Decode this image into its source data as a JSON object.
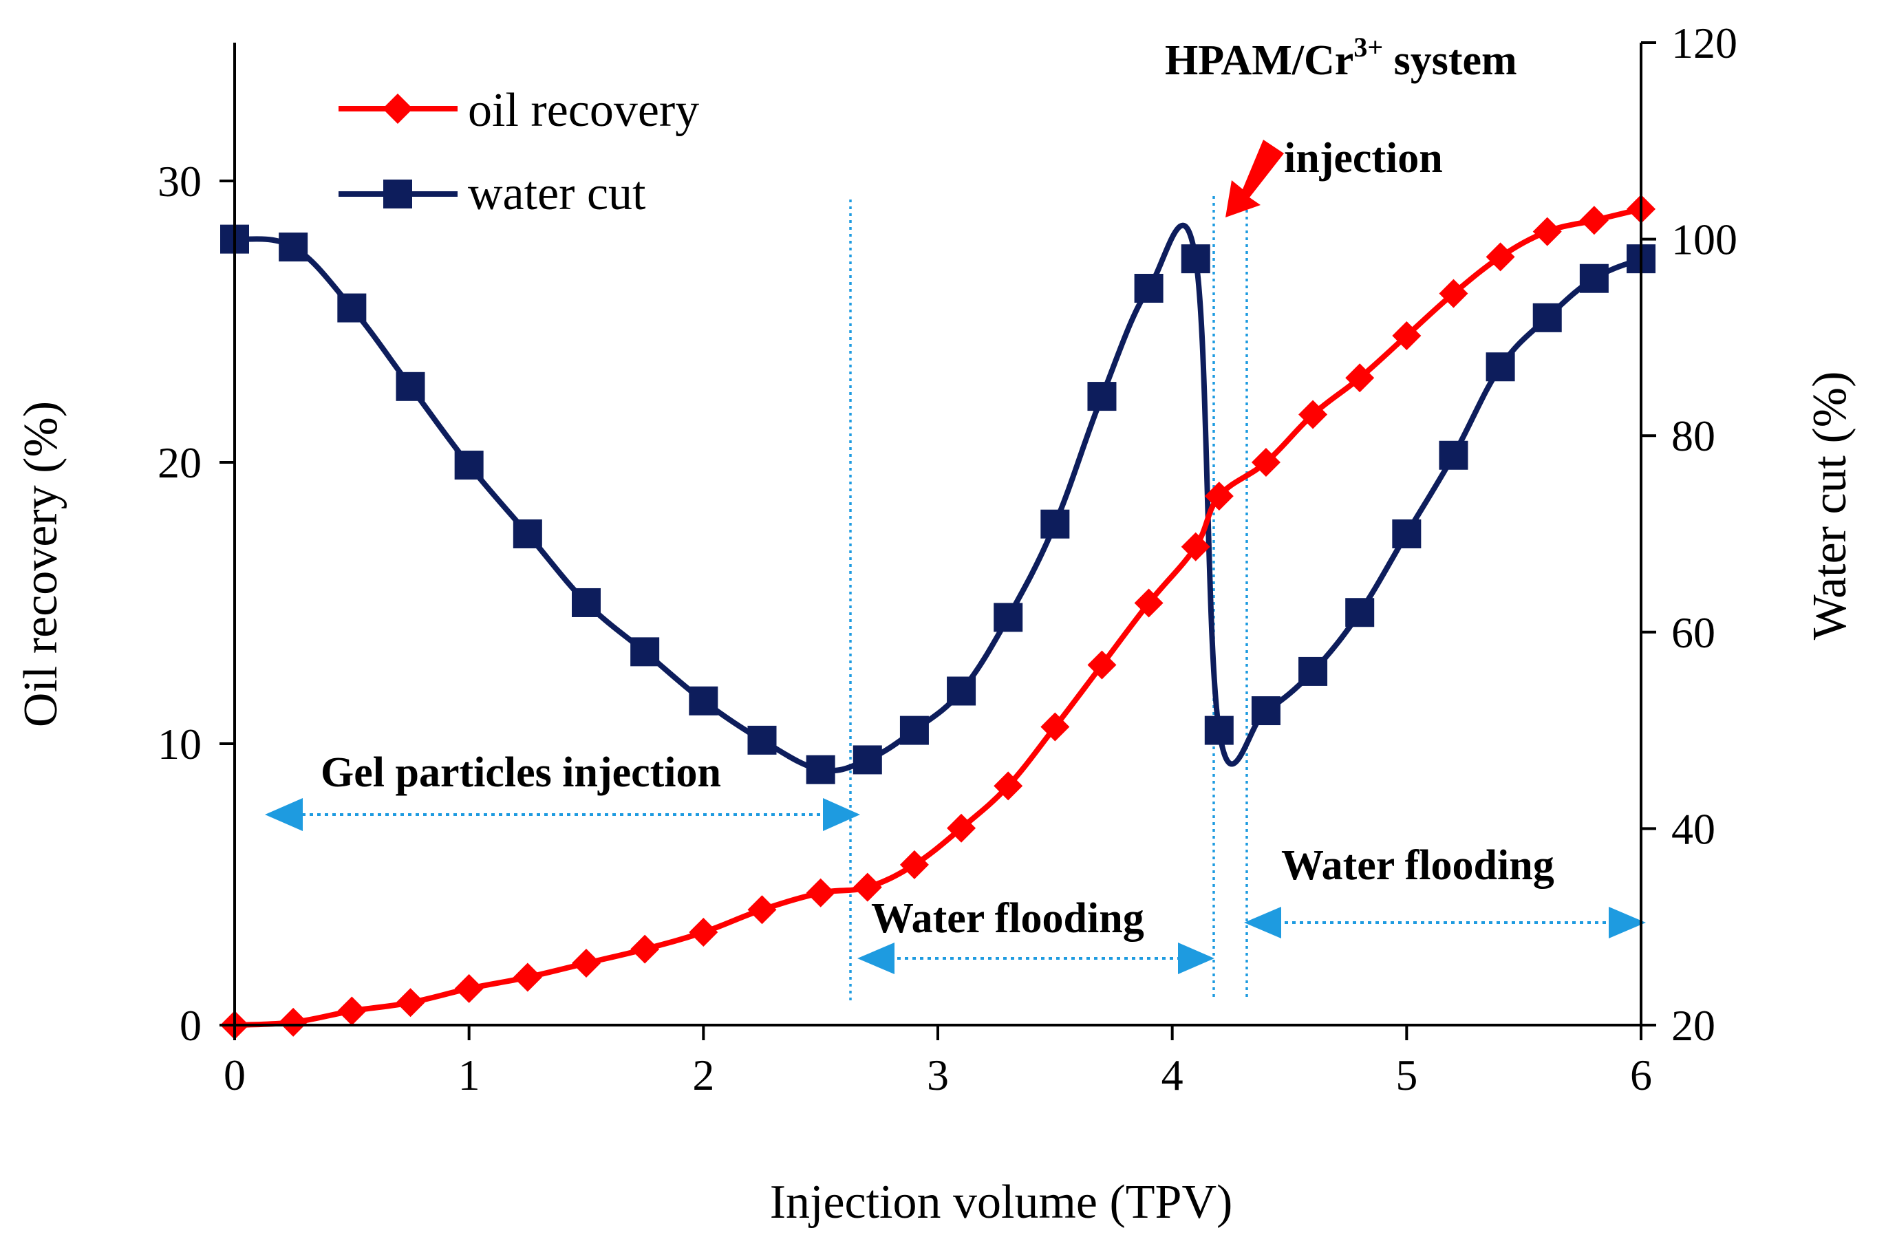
{
  "chart_data": {
    "type": "line",
    "title": "",
    "xlabel": "Injection volume (TPV)",
    "ylabel": "Oil recovery (%)",
    "y2label": "Water cut (%)",
    "xlim": [
      0,
      6
    ],
    "ylim": [
      0,
      35
    ],
    "y2lim": [
      20,
      120
    ],
    "x_ticks": [
      "0",
      "1",
      "2",
      "3",
      "4",
      "5",
      "6"
    ],
    "y_ticks": [
      "0",
      "10",
      "20",
      "30"
    ],
    "y2_ticks": [
      "20",
      "40",
      "60",
      "80",
      "100",
      "120"
    ],
    "grid": false,
    "legend_position": "top-left",
    "series": [
      {
        "name": "oil recovery",
        "axis": "left",
        "color": "#ff0000",
        "marker": "diamond",
        "x": [
          0,
          0.25,
          0.5,
          0.75,
          1.0,
          1.25,
          1.5,
          1.75,
          2.0,
          2.25,
          2.5,
          2.7,
          2.9,
          3.1,
          3.3,
          3.5,
          3.7,
          3.9,
          4.1,
          4.2,
          4.4,
          4.6,
          4.8,
          5.0,
          5.2,
          5.4,
          5.6,
          5.8,
          6.0
        ],
        "y": [
          0.0,
          0.1,
          0.5,
          0.8,
          1.3,
          1.7,
          2.2,
          2.7,
          3.3,
          4.1,
          4.7,
          4.9,
          5.7,
          7.0,
          8.5,
          10.6,
          12.8,
          15.0,
          17.0,
          18.8,
          20.0,
          21.7,
          23.0,
          24.5,
          26.0,
          27.3,
          28.2,
          28.6,
          29.0
        ]
      },
      {
        "name": "water cut",
        "axis": "right",
        "color": "#0d1d5c",
        "marker": "square",
        "x": [
          0,
          0.25,
          0.5,
          0.75,
          1.0,
          1.25,
          1.5,
          1.75,
          2.0,
          2.25,
          2.5,
          2.7,
          2.9,
          3.1,
          3.3,
          3.5,
          3.7,
          3.9,
          4.1,
          4.2,
          4.4,
          4.6,
          4.8,
          5.0,
          5.2,
          5.4,
          5.6,
          5.8,
          6.0
        ],
        "y": [
          100.0,
          99.2,
          93.0,
          85.0,
          77.0,
          70.0,
          63.0,
          58.0,
          53.0,
          49.0,
          46.0,
          47.0,
          50.0,
          54.0,
          61.5,
          71.0,
          84.0,
          95.0,
          98.0,
          50.0,
          52.0,
          56.0,
          62.0,
          70.0,
          78.0,
          87.0,
          92.0,
          96.0,
          98.0
        ]
      }
    ],
    "vertical_lines_x": [
      2.63,
      4.17,
      4.31
    ],
    "annotations": [
      {
        "text": "Gel particles injection",
        "from_x": 0.15,
        "to_x": 2.63,
        "y_left": 7.5
      },
      {
        "text": "Water flooding",
        "from_x": 2.63,
        "to_x": 4.17,
        "y_left": 2.4
      },
      {
        "text": "Water flooding",
        "from_x": 4.31,
        "to_x": 6.0,
        "y_left": 3.7
      },
      {
        "text_parts": [
          "HPAM/Cr",
          "3+",
          " system"
        ]
      },
      {
        "text": "injection"
      }
    ]
  }
}
